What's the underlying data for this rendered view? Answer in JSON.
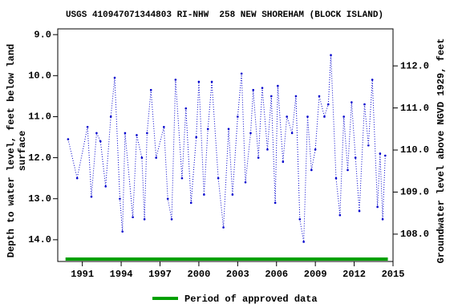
{
  "chart_data": {
    "type": "line",
    "title": "USGS 410947071344803 RI-NHW  258 NEW SHOREHAM (BLOCK ISLAND)",
    "y_label": [
      "Depth to water level, feet below land",
      "surface"
    ],
    "y2_label": "Groundwater level above NGVD 1929, feet",
    "y_inverted": true,
    "xlim": [
      1989.1,
      2015
    ],
    "xticks": [
      1991,
      1994,
      1997,
      2000,
      2003,
      2006,
      2009,
      2012,
      2015
    ],
    "ylim": [
      8.86,
      14.53
    ],
    "yticks": [
      {
        "value": 9,
        "label": "9.0"
      },
      {
        "value": 10,
        "label": "10.0"
      },
      {
        "value": 11,
        "label": "11.0"
      },
      {
        "value": 12,
        "label": "12.0"
      },
      {
        "value": 13,
        "label": "13.0"
      },
      {
        "value": 14,
        "label": "14.0"
      }
    ],
    "y2lim": [
      107.35,
      112.88
    ],
    "y2ticks": [
      {
        "value": 108,
        "label": "108.0"
      },
      {
        "value": 109,
        "label": "109.0"
      },
      {
        "value": 110,
        "label": "110.0"
      },
      {
        "value": 111,
        "label": "111.0"
      },
      {
        "value": 112,
        "label": "112.0"
      }
    ],
    "x": [
      1989.9,
      1990.6,
      1991.4,
      1991.7,
      1992.1,
      1992.4,
      1992.8,
      1993.2,
      1993.5,
      1993.9,
      1994.1,
      1994.3,
      1994.9,
      1995.2,
      1995.6,
      1995.8,
      1996.0,
      1996.3,
      1996.7,
      1997.3,
      1997.6,
      1997.9,
      1998.2,
      1998.7,
      1999.0,
      1999.4,
      1999.8,
      2000.0,
      2000.4,
      2000.7,
      2001.0,
      2001.5,
      2001.9,
      2002.3,
      2002.6,
      2003.0,
      2003.3,
      2003.6,
      2004.0,
      2004.2,
      2004.6,
      2004.9,
      2005.3,
      2005.6,
      2005.9,
      2006.1,
      2006.5,
      2006.8,
      2007.2,
      2007.5,
      2007.8,
      2008.1,
      2008.4,
      2008.7,
      2009.0,
      2009.3,
      2009.7,
      2010.0,
      2010.2,
      2010.6,
      2010.9,
      2011.2,
      2011.5,
      2011.8,
      2012.1,
      2012.4,
      2012.8,
      2013.1,
      2013.4,
      2013.8,
      2014.0,
      2014.2,
      2014.4
    ],
    "series": [
      {
        "name": "Depth to water level",
        "color": "#0000cc",
        "values": [
          11.55,
          12.5,
          11.25,
          12.95,
          11.4,
          11.6,
          12.7,
          11.0,
          10.05,
          13.0,
          13.8,
          11.4,
          13.45,
          11.45,
          12.0,
          13.5,
          11.4,
          10.35,
          12.0,
          11.25,
          13.0,
          13.5,
          10.1,
          12.5,
          10.8,
          13.1,
          11.5,
          10.15,
          12.9,
          11.3,
          10.15,
          12.5,
          13.7,
          11.3,
          12.9,
          11.0,
          9.95,
          12.6,
          11.4,
          10.35,
          12.0,
          10.3,
          11.8,
          10.5,
          13.1,
          10.25,
          12.1,
          11.0,
          11.4,
          10.5,
          13.5,
          14.05,
          11.0,
          12.3,
          11.8,
          10.5,
          11.0,
          10.7,
          9.5,
          12.5,
          13.4,
          11.0,
          12.3,
          10.65,
          12.0,
          13.3,
          10.7,
          11.7,
          10.1,
          13.2,
          11.9,
          13.5,
          11.95
        ]
      }
    ],
    "approved_period": [
      1989.7,
      2014.6
    ],
    "approved_color": "#00a000",
    "legend": "Period of approved data"
  }
}
